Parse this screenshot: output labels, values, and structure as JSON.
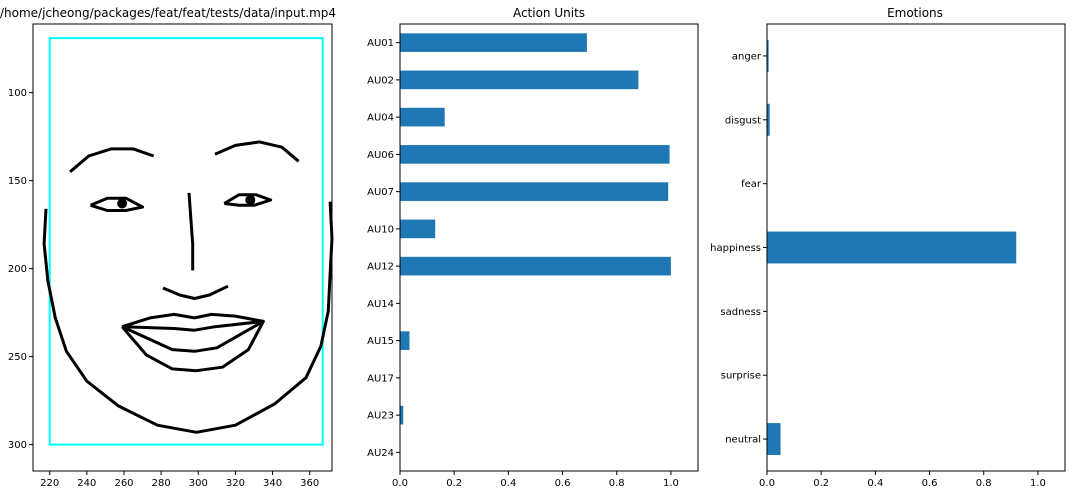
{
  "chart_data": [
    {
      "type": "scatter",
      "title": "/home/jcheong/packages/feat/feat/tests/data/input.mp4",
      "xlim": [
        211,
        372
      ],
      "ylim": [
        315,
        61
      ],
      "xticks": [
        220,
        240,
        260,
        280,
        300,
        320,
        340,
        360
      ],
      "yticks": [
        100,
        150,
        200,
        250,
        300
      ],
      "box": {
        "x0": 220,
        "x1": 367,
        "y0": 69,
        "y1": 300,
        "color": "#00ffff"
      },
      "face_color": "#000000",
      "pupils": [
        [
          259,
          163
        ],
        [
          328,
          161
        ]
      ],
      "strokes": [
        [
          [
            218,
            166
          ],
          [
            217,
            186
          ],
          [
            219,
            207
          ],
          [
            223,
            228
          ],
          [
            229,
            247
          ],
          [
            240,
            264
          ],
          [
            257,
            278
          ],
          [
            278,
            289
          ],
          [
            299,
            293
          ],
          [
            320,
            289
          ],
          [
            341,
            277
          ],
          [
            358,
            262
          ],
          [
            366,
            244
          ],
          [
            370,
            224
          ],
          [
            371,
            203
          ],
          [
            372,
            183
          ],
          [
            371,
            162
          ]
        ],
        [
          [
            231,
            145
          ],
          [
            241,
            136
          ],
          [
            253,
            132
          ],
          [
            265,
            132
          ],
          [
            276,
            136
          ]
        ],
        [
          [
            309,
            135
          ],
          [
            320,
            130
          ],
          [
            333,
            128
          ],
          [
            345,
            131
          ],
          [
            354,
            139
          ]
        ],
        [
          [
            295,
            157
          ],
          [
            296,
            172
          ],
          [
            297,
            186
          ],
          [
            297,
            201
          ]
        ],
        [
          [
            281,
            211
          ],
          [
            290,
            215
          ],
          [
            298,
            217
          ],
          [
            306,
            215
          ],
          [
            316,
            210
          ]
        ],
        [
          [
            242,
            164
          ],
          [
            251,
            160
          ],
          [
            261,
            160
          ],
          [
            270,
            165
          ],
          [
            261,
            167
          ],
          [
            251,
            167
          ],
          [
            242,
            164
          ]
        ],
        [
          [
            314,
            163
          ],
          [
            322,
            158
          ],
          [
            331,
            158
          ],
          [
            339,
            161
          ],
          [
            330,
            164
          ],
          [
            322,
            164
          ],
          [
            314,
            163
          ]
        ],
        [
          [
            259,
            233
          ],
          [
            274,
            228
          ],
          [
            287,
            226
          ],
          [
            298,
            228
          ],
          [
            307,
            226
          ],
          [
            320,
            227
          ],
          [
            335,
            230
          ],
          [
            327,
            246
          ],
          [
            313,
            256
          ],
          [
            299,
            258
          ],
          [
            286,
            257
          ],
          [
            272,
            249
          ],
          [
            259,
            233
          ]
        ],
        [
          [
            259,
            233
          ],
          [
            287,
            234
          ],
          [
            298,
            235
          ],
          [
            309,
            233
          ],
          [
            335,
            230
          ],
          [
            310,
            245
          ],
          [
            298,
            247
          ],
          [
            286,
            246
          ],
          [
            259,
            233
          ]
        ]
      ]
    },
    {
      "type": "bar",
      "orientation": "horizontal",
      "title": "Action Units",
      "categories": [
        "AU01",
        "AU02",
        "AU04",
        "AU06",
        "AU07",
        "AU10",
        "AU12",
        "AU14",
        "AU15",
        "AU17",
        "AU23",
        "AU24"
      ],
      "values": [
        0.69,
        0.88,
        0.165,
        0.995,
        0.99,
        0.13,
        1.0,
        0.0,
        0.035,
        0.0,
        0.012,
        0.0
      ],
      "xlim": [
        0,
        1.1
      ],
      "xticks": [
        "0.0",
        "0.2",
        "0.4",
        "0.6",
        "0.8",
        "1.0"
      ],
      "color": "#1f77b4",
      "xlabel": "",
      "ylabel": ""
    },
    {
      "type": "bar",
      "orientation": "horizontal",
      "title": "Emotions",
      "categories": [
        "anger",
        "disgust",
        "fear",
        "happiness",
        "sadness",
        "surprise",
        "neutral"
      ],
      "values": [
        0.006,
        0.01,
        0.0,
        0.92,
        0.0,
        0.0,
        0.05
      ],
      "xlim": [
        0,
        1.1
      ],
      "xticks": [
        "0.0",
        "0.2",
        "0.4",
        "0.6",
        "0.8",
        "1.0"
      ],
      "color": "#1f77b4",
      "xlabel": "",
      "ylabel": ""
    }
  ]
}
